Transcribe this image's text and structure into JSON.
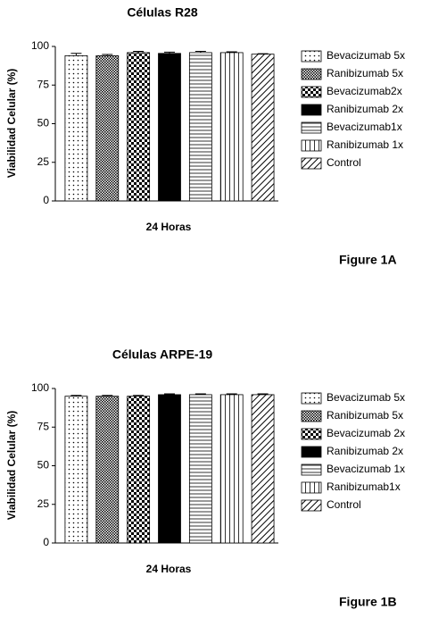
{
  "chart_data": [
    {
      "type": "bar",
      "title": "Células R28",
      "x_label": "24 Horas",
      "y_label": "Viabilidad Celular (%)",
      "caption": "Figure 1A",
      "categories": [
        "24 Horas"
      ],
      "ylim": [
        0,
        100
      ],
      "yticks": [
        0,
        25,
        50,
        75,
        100
      ],
      "grid": false,
      "legend": "right",
      "series": [
        {
          "name": "Bevacizumab 5x",
          "color": "#000000",
          "pattern": "dots",
          "values": [
            94
          ],
          "errors": [
            1.5
          ]
        },
        {
          "name": "Ranibizumab 5x",
          "color": "#000000",
          "pattern": "grid",
          "values": [
            94
          ],
          "errors": [
            0.8
          ]
        },
        {
          "name": "Bevacizumab2x",
          "color": "#000000",
          "pattern": "checker",
          "values": [
            96
          ],
          "errors": [
            0.8
          ]
        },
        {
          "name": "Ranibizumab 2x",
          "color": "#000000",
          "pattern": "solid",
          "values": [
            95.5
          ],
          "errors": [
            0.8
          ]
        },
        {
          "name": "Bevacizumab1x",
          "color": "#000000",
          "pattern": "hlines",
          "values": [
            96
          ],
          "errors": [
            0.8
          ]
        },
        {
          "name": "Ranibizumab 1x",
          "color": "#000000",
          "pattern": "vlines",
          "values": [
            96
          ],
          "errors": [
            0.5
          ]
        },
        {
          "name": "Control",
          "color": "#000000",
          "pattern": "diagonal",
          "values": [
            95
          ],
          "errors": [
            0.3
          ]
        }
      ]
    },
    {
      "type": "bar",
      "title": "Células ARPE-19",
      "x_label": "24 Horas",
      "y_label": "Viabilidad Celular (%)",
      "caption": "Figure 1B",
      "categories": [
        "24 Horas"
      ],
      "ylim": [
        0,
        100
      ],
      "yticks": [
        0,
        25,
        50,
        75,
        100
      ],
      "grid": false,
      "legend": "right",
      "series": [
        {
          "name": "Bevacizumab 5x",
          "color": "#000000",
          "pattern": "dots",
          "values": [
            95
          ],
          "errors": [
            0.5
          ]
        },
        {
          "name": "Ranibizumab 5x",
          "color": "#000000",
          "pattern": "grid",
          "values": [
            95
          ],
          "errors": [
            0.5
          ]
        },
        {
          "name": "Bevacizumab 2x",
          "color": "#000000",
          "pattern": "checker",
          "values": [
            95
          ],
          "errors": [
            0.5
          ]
        },
        {
          "name": "Ranibizumab 2x",
          "color": "#000000",
          "pattern": "solid",
          "values": [
            96
          ],
          "errors": [
            0.5
          ]
        },
        {
          "name": "Bevacizumab 1x",
          "color": "#000000",
          "pattern": "hlines",
          "values": [
            96
          ],
          "errors": [
            0.5
          ]
        },
        {
          "name": "Ranibizumab1x",
          "color": "#000000",
          "pattern": "vlines",
          "values": [
            96
          ],
          "errors": [
            0.5
          ]
        },
        {
          "name": "Control",
          "color": "#000000",
          "pattern": "diagonal",
          "values": [
            96
          ],
          "errors": [
            0.5
          ]
        }
      ]
    }
  ]
}
